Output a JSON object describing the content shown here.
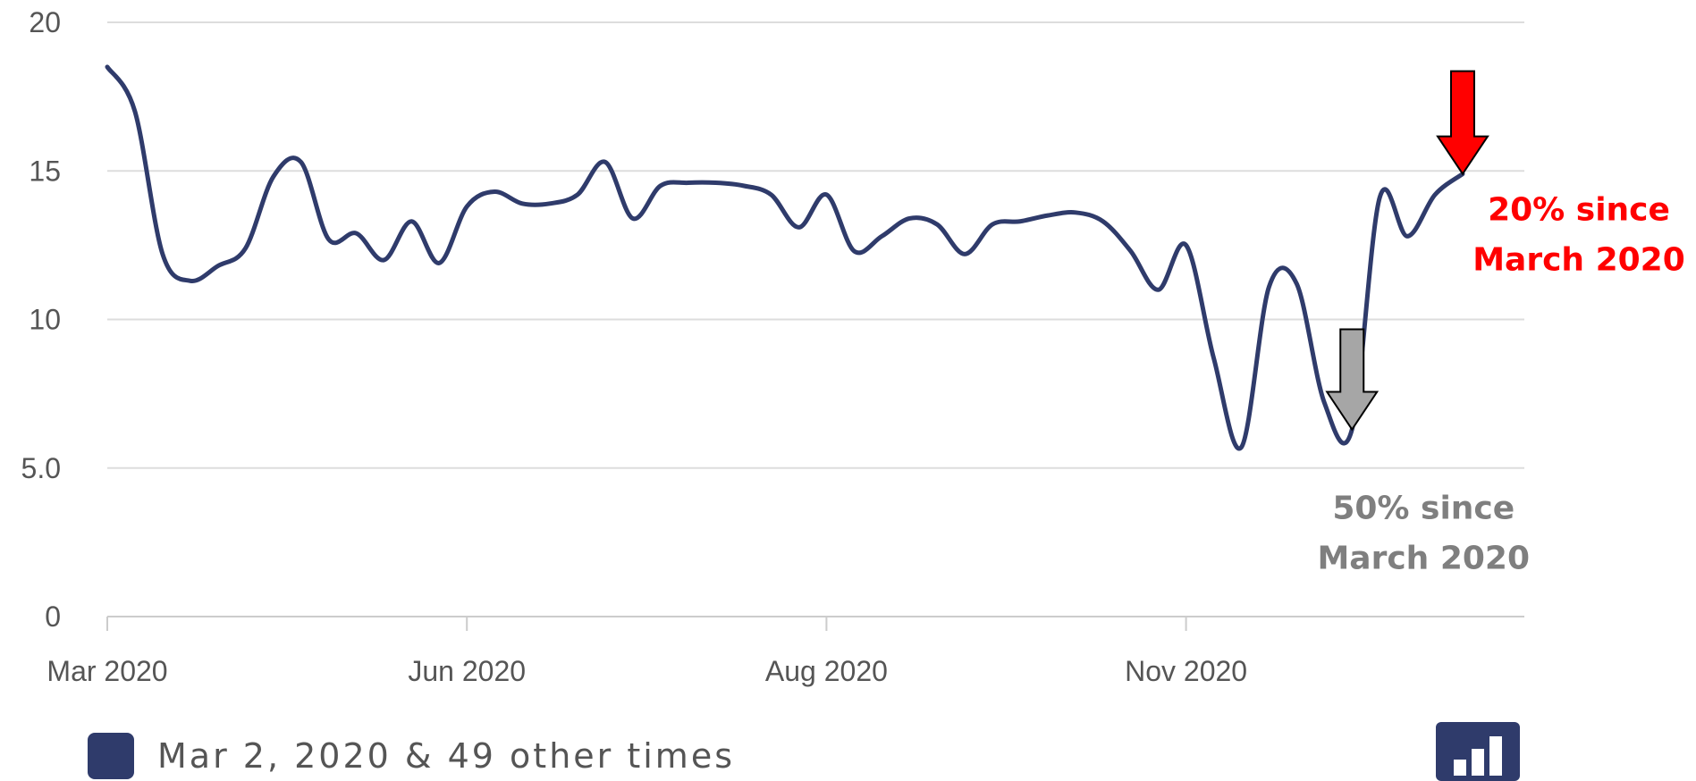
{
  "chart_data": {
    "type": "line",
    "x": [
      "2020-03-02",
      "2020-03-09",
      "2020-03-16",
      "2020-03-23",
      "2020-03-30",
      "2020-04-06",
      "2020-04-13",
      "2020-04-20",
      "2020-04-27",
      "2020-05-04",
      "2020-05-11",
      "2020-05-18",
      "2020-05-25",
      "2020-06-01",
      "2020-06-08",
      "2020-06-15",
      "2020-06-22",
      "2020-06-29",
      "2020-07-06",
      "2020-07-13",
      "2020-07-20",
      "2020-07-27",
      "2020-08-03",
      "2020-08-10",
      "2020-08-17",
      "2020-08-24",
      "2020-08-31",
      "2020-09-07",
      "2020-09-14",
      "2020-09-21",
      "2020-09-28",
      "2020-10-05",
      "2020-10-12",
      "2020-10-19",
      "2020-10-26",
      "2020-11-02",
      "2020-11-09",
      "2020-11-16",
      "2020-11-23",
      "2020-11-30",
      "2020-12-07",
      "2020-12-14",
      "2020-12-21",
      "2020-12-28",
      "2021-01-04",
      "2021-01-11",
      "2021-01-18",
      "2021-01-25",
      "2021-02-01",
      "2021-02-08"
    ],
    "values": [
      18.5,
      17.0,
      12.2,
      11.3,
      11.8,
      12.4,
      14.8,
      15.3,
      12.7,
      12.9,
      12.0,
      13.3,
      11.9,
      13.8,
      14.3,
      13.9,
      13.9,
      14.2,
      15.3,
      13.4,
      14.5,
      14.6,
      14.6,
      14.5,
      14.2,
      13.1,
      14.2,
      12.3,
      12.8,
      13.4,
      13.2,
      12.2,
      13.2,
      13.3,
      13.5,
      13.6,
      13.3,
      12.3,
      11.0,
      12.5,
      8.7,
      5.7,
      11.1,
      11.2,
      7.2,
      6.3,
      14.1,
      12.8,
      14.2,
      14.9
    ],
    "xticks": [
      {
        "date": "2020-03-02",
        "label": "Mar 2020"
      },
      {
        "date": "2020-06-01",
        "label": "Jun 2020"
      },
      {
        "date": "2020-08-31",
        "label": "Aug 2020"
      },
      {
        "date": "2020-11-30",
        "label": "Nov 2020"
      }
    ],
    "yticks": [
      {
        "value": 0,
        "label": "0"
      },
      {
        "value": 5,
        "label": "5.0"
      },
      {
        "value": 10,
        "label": "10"
      },
      {
        "value": 15,
        "label": "15"
      },
      {
        "value": 20,
        "label": "20"
      }
    ],
    "ylim": [
      0,
      20
    ],
    "grid": "horizontal",
    "series_color": "#2f3b6b",
    "title": "",
    "xlabel": "",
    "ylabel": "",
    "annotations": [
      {
        "line1": "20% since",
        "line2": "March 2020",
        "color": "#ff0000",
        "arrow_fill": "#ff0000",
        "x": "2021-02-08",
        "y": 14.9
      },
      {
        "line1": "50% since",
        "line2": "March 2020",
        "color": "#7f7f7f",
        "arrow_fill": "#a6a6a6",
        "x": "2021-01-11",
        "y": 6.3
      }
    ]
  },
  "legend": {
    "label": "Mar 2, 2020 & 49 other times",
    "color": "#2f3b6b"
  },
  "toolbar": {
    "chart_type_icon": "bar-chart-icon",
    "icon_color": "#2f3b6b"
  }
}
